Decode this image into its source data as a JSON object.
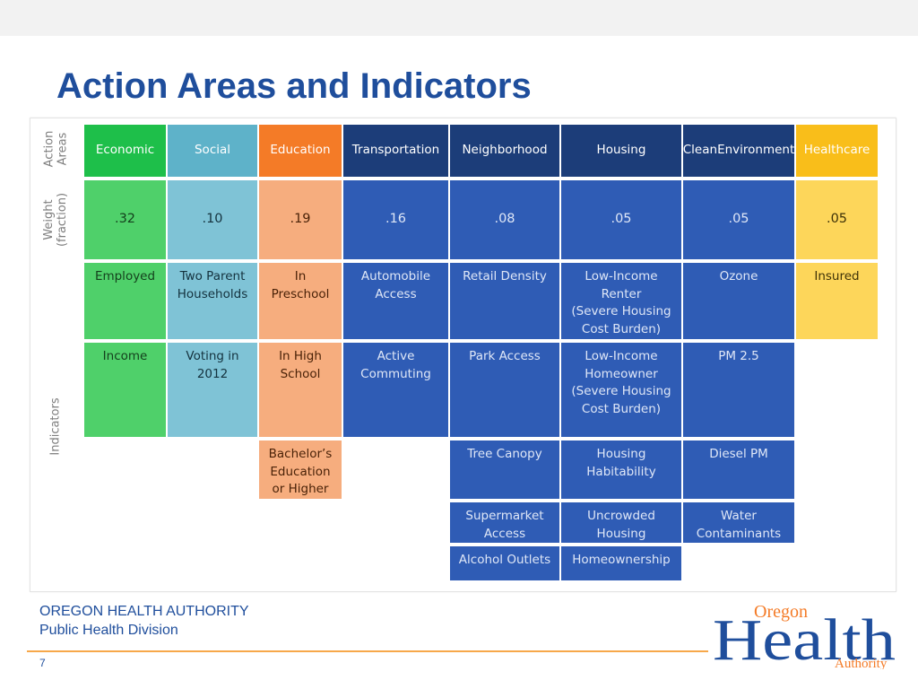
{
  "slide": {
    "title": "Action Areas and Indicators",
    "footer_org": "OREGON HEALTH AUTHORITY",
    "footer_division": "Public Health Division",
    "page_number": "7",
    "logo": {
      "line1": "Oregon",
      "line2": "Health",
      "line3": "Authority",
      "icon": "oregon-health-authority-logo"
    }
  },
  "table": {
    "row_labels": {
      "areas": "Action\nAreas",
      "weight": "Weight\n(fraction)",
      "indicators": "Indicators"
    },
    "columns": [
      {
        "name": "Economic",
        "weight": ".32",
        "indicators": [
          "Employed",
          "Income"
        ],
        "color": "#1ebf4a"
      },
      {
        "name": "Social",
        "weight": ".10",
        "indicators": [
          "Two Parent\nHouseholds",
          "Voting in\n2012"
        ],
        "color": "#5eb2c9"
      },
      {
        "name": "Education",
        "weight": ".19",
        "indicators": [
          "In\nPreschool",
          "In High\nSchool",
          "Bachelor’s\nEducation\nor Higher"
        ],
        "color": "#f47b27"
      },
      {
        "name": "Transportation",
        "weight": ".16",
        "indicators": [
          "Automobile\nAccess",
          "Active\nCommuting"
        ],
        "color": "#2f5cb5"
      },
      {
        "name": "Neighborhood",
        "weight": ".08",
        "indicators": [
          "Retail Density",
          "Park Access",
          "Tree Canopy",
          "Supermarket\nAccess",
          "Alcohol Outlets"
        ],
        "color": "#2f5cb5"
      },
      {
        "name": "Housing",
        "weight": ".05",
        "indicators": [
          "Low-Income\nRenter\n(Severe Housing\nCost Burden)",
          "Low-Income\nHomeowner\n(Severe Housing\nCost Burden)",
          "Housing\nHabitability",
          "Uncrowded\nHousing",
          "Homeownership"
        ],
        "color": "#2f5cb5"
      },
      {
        "name": "Clean\nEnvironment",
        "weight": ".05",
        "indicators": [
          "Ozone",
          "PM 2.5",
          "Diesel PM",
          "Water\nContaminants"
        ],
        "color": "#2f5cb5"
      },
      {
        "name": "Healthcare",
        "weight": ".05",
        "indicators": [
          "Insured"
        ],
        "color": "#f9be1a"
      }
    ]
  }
}
